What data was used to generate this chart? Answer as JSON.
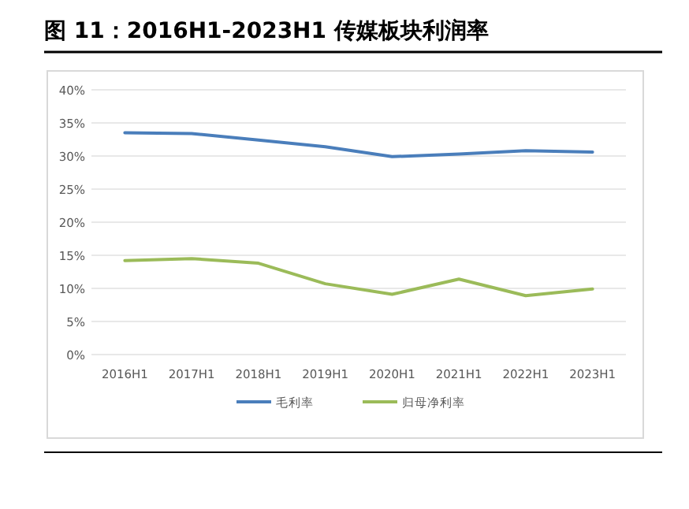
{
  "chart_data": {
    "type": "line",
    "title": "图 11：2016H1-2023H1 传媒板块利润率",
    "categories": [
      "2016H1",
      "2017H1",
      "2018H1",
      "2019H1",
      "2020H1",
      "2021H1",
      "2022H1",
      "2023H1"
    ],
    "series": [
      {
        "name": "毛利率",
        "color": "#4a7ebb",
        "values": [
          33.5,
          33.4,
          32.4,
          31.4,
          29.9,
          30.3,
          30.8,
          30.6
        ]
      },
      {
        "name": "归母净利率",
        "color": "#9bbb59",
        "values": [
          14.2,
          14.5,
          13.8,
          10.7,
          9.1,
          11.4,
          8.9,
          9.9
        ]
      }
    ],
    "ylim": [
      0,
      40
    ],
    "yticks": [
      {
        "value": 0,
        "label": "0%"
      },
      {
        "value": 5,
        "label": "5%"
      },
      {
        "value": 10,
        "label": "10%"
      },
      {
        "value": 15,
        "label": "15%"
      },
      {
        "value": 20,
        "label": "20%"
      },
      {
        "value": 25,
        "label": "25%"
      },
      {
        "value": 30,
        "label": "30%"
      },
      {
        "value": 35,
        "label": "35%"
      },
      {
        "value": 40,
        "label": "40%"
      }
    ],
    "grid": "y",
    "legend": "bottom"
  }
}
